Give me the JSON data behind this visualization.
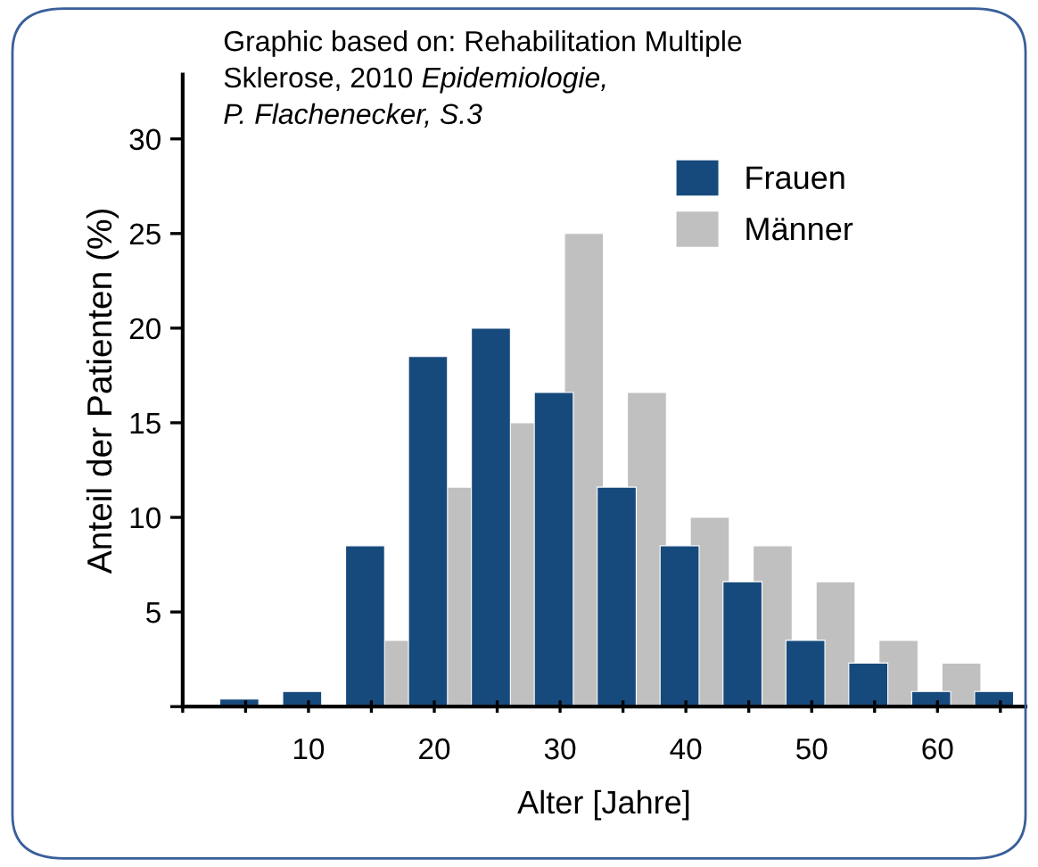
{
  "chart_data": {
    "type": "bar",
    "xlabel": "Alter [Jahre]",
    "ylabel": "Anteil der Patienten (%)",
    "annotations": [
      "Graphic based on: Rehabilitation Multiple\nSklerose, 2010",
      "Epidemiologie,\nP. Flachenecker, S.3"
    ],
    "series": [
      {
        "name": "Frauen",
        "color": "#174a7c",
        "x": [
          4.5,
          9.5,
          14.5,
          19.5,
          24.5,
          29.5,
          34.5,
          39.5,
          44.5,
          49.5,
          54.5,
          59.5,
          64.5
        ],
        "values": [
          0.4,
          0.8,
          8.5,
          18.5,
          20,
          16.6,
          11.6,
          8.5,
          6.6,
          3.5,
          2.3,
          0.8,
          0.8
        ]
      },
      {
        "name": "Männer",
        "color": "#c0c0c0",
        "x": [
          16.9,
          21.9,
          26.9,
          31.9,
          36.9,
          41.9,
          46.9,
          51.9,
          56.9,
          61.9
        ],
        "values": [
          3.5,
          11.6,
          15,
          25,
          16.6,
          10,
          8.5,
          6.6,
          3.5,
          2.3
        ]
      }
    ],
    "xlim": [
      0,
      67
    ],
    "ylim": [
      0,
      33.4
    ],
    "xticks": [
      {
        "value": 0,
        "label": null
      },
      {
        "value": 5,
        "label": null
      },
      10,
      {
        "value": 15,
        "label": null
      },
      20,
      {
        "value": 25,
        "label": null
      },
      30,
      {
        "value": 35,
        "label": null
      },
      40,
      {
        "value": 45,
        "label": null
      },
      50,
      {
        "value": 55,
        "label": null
      },
      60,
      {
        "value": 65,
        "label": null
      }
    ],
    "yticks": [
      {
        "value": 0,
        "label": null
      },
      5,
      10,
      15,
      20,
      25,
      30
    ],
    "grid": false,
    "legend": "top right"
  }
}
